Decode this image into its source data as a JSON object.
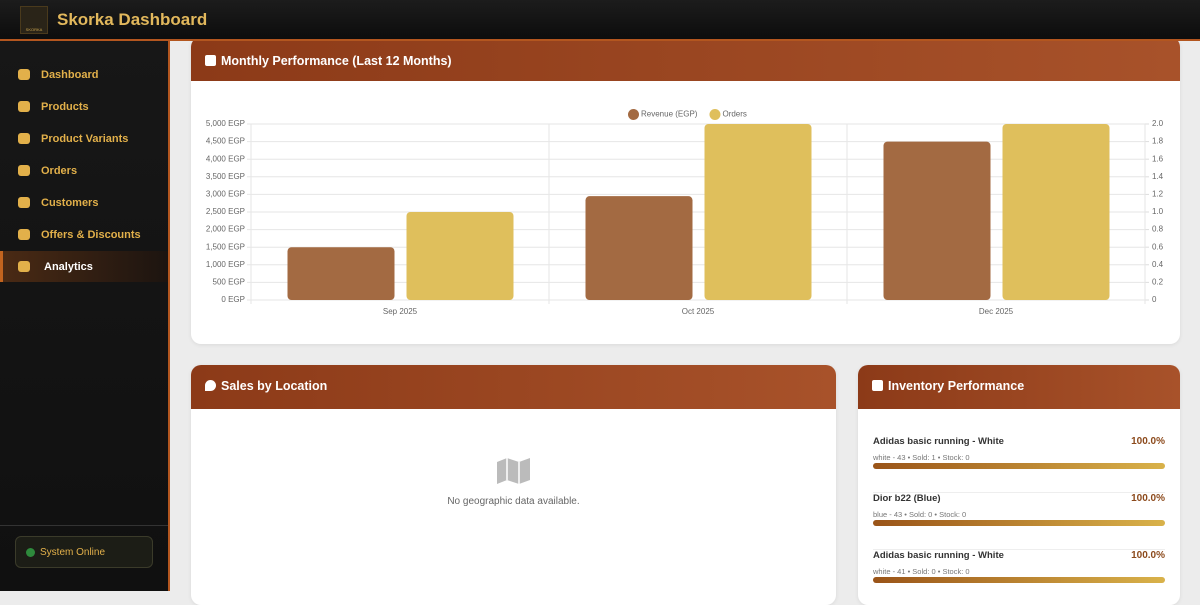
{
  "header": {
    "logo": "SKORKA",
    "title": "Skorka Dashboard"
  },
  "sidebar": {
    "items": [
      "Dashboard",
      "Products",
      "Product Variants",
      "Orders",
      "Customers",
      "Offers & Discounts",
      "Analytics"
    ],
    "active": "Analytics",
    "status": "System Online"
  },
  "chart_data": {
    "type": "bar",
    "title": "Monthly Performance (Last 12 Months)",
    "categories": [
      "Sep 2025",
      "Oct 2025",
      "Dec 2025"
    ],
    "series": [
      {
        "name": "Revenue (EGP)",
        "color": "#a36a42",
        "values": [
          1500,
          2950,
          4500
        ]
      },
      {
        "name": "Orders",
        "color": "#dfbf5c",
        "values": [
          1,
          2,
          2
        ],
        "axis": "y2"
      }
    ],
    "ylim": [
      0,
      5000
    ],
    "yticks": [
      {
        "value": 0,
        "label": "0 EGP"
      },
      {
        "value": 500,
        "label": "500 EGP"
      },
      {
        "value": 1000,
        "label": "1,000 EGP"
      },
      {
        "value": 1500,
        "label": "1,500 EGP"
      },
      {
        "value": 2000,
        "label": "2,000 EGP"
      },
      {
        "value": 2500,
        "label": "2,500 EGP"
      },
      {
        "value": 3000,
        "label": "3,000 EGP"
      },
      {
        "value": 3500,
        "label": "3,500 EGP"
      },
      {
        "value": 4000,
        "label": "4,000 EGP"
      },
      {
        "value": 4500,
        "label": "4,500 EGP"
      },
      {
        "value": 5000,
        "label": "5,000 EGP"
      }
    ],
    "y2lim": [
      0,
      2
    ],
    "y2ticks": [
      0,
      0.2,
      0.4,
      0.6,
      0.8,
      {
        "value": 1,
        "label": "1.0"
      },
      1.2,
      1.4,
      1.6,
      1.8,
      {
        "value": 2,
        "label": "2.0"
      }
    ],
    "grid": true,
    "legend": "top"
  },
  "location": {
    "title": "Sales by Location",
    "empty": "No geographic data available."
  },
  "inventory": {
    "title": "Inventory Performance",
    "items": [
      {
        "name": "Adidas basic running - White",
        "percent": {
          "value": 100,
          "label": "100.0%"
        },
        "details": "white - 43 • Sold: 1 • Stock: 0"
      },
      {
        "name": "Dior b22 (Blue)",
        "percent": {
          "value": 100,
          "label": "100.0%"
        },
        "details": "blue - 43 • Sold: 0 • Stock: 0"
      },
      {
        "name": "Adidas basic running - White",
        "percent": {
          "value": 100,
          "label": "100.0%"
        },
        "details": "white - 41 • Sold: 0 • Stock: 0"
      }
    ]
  }
}
